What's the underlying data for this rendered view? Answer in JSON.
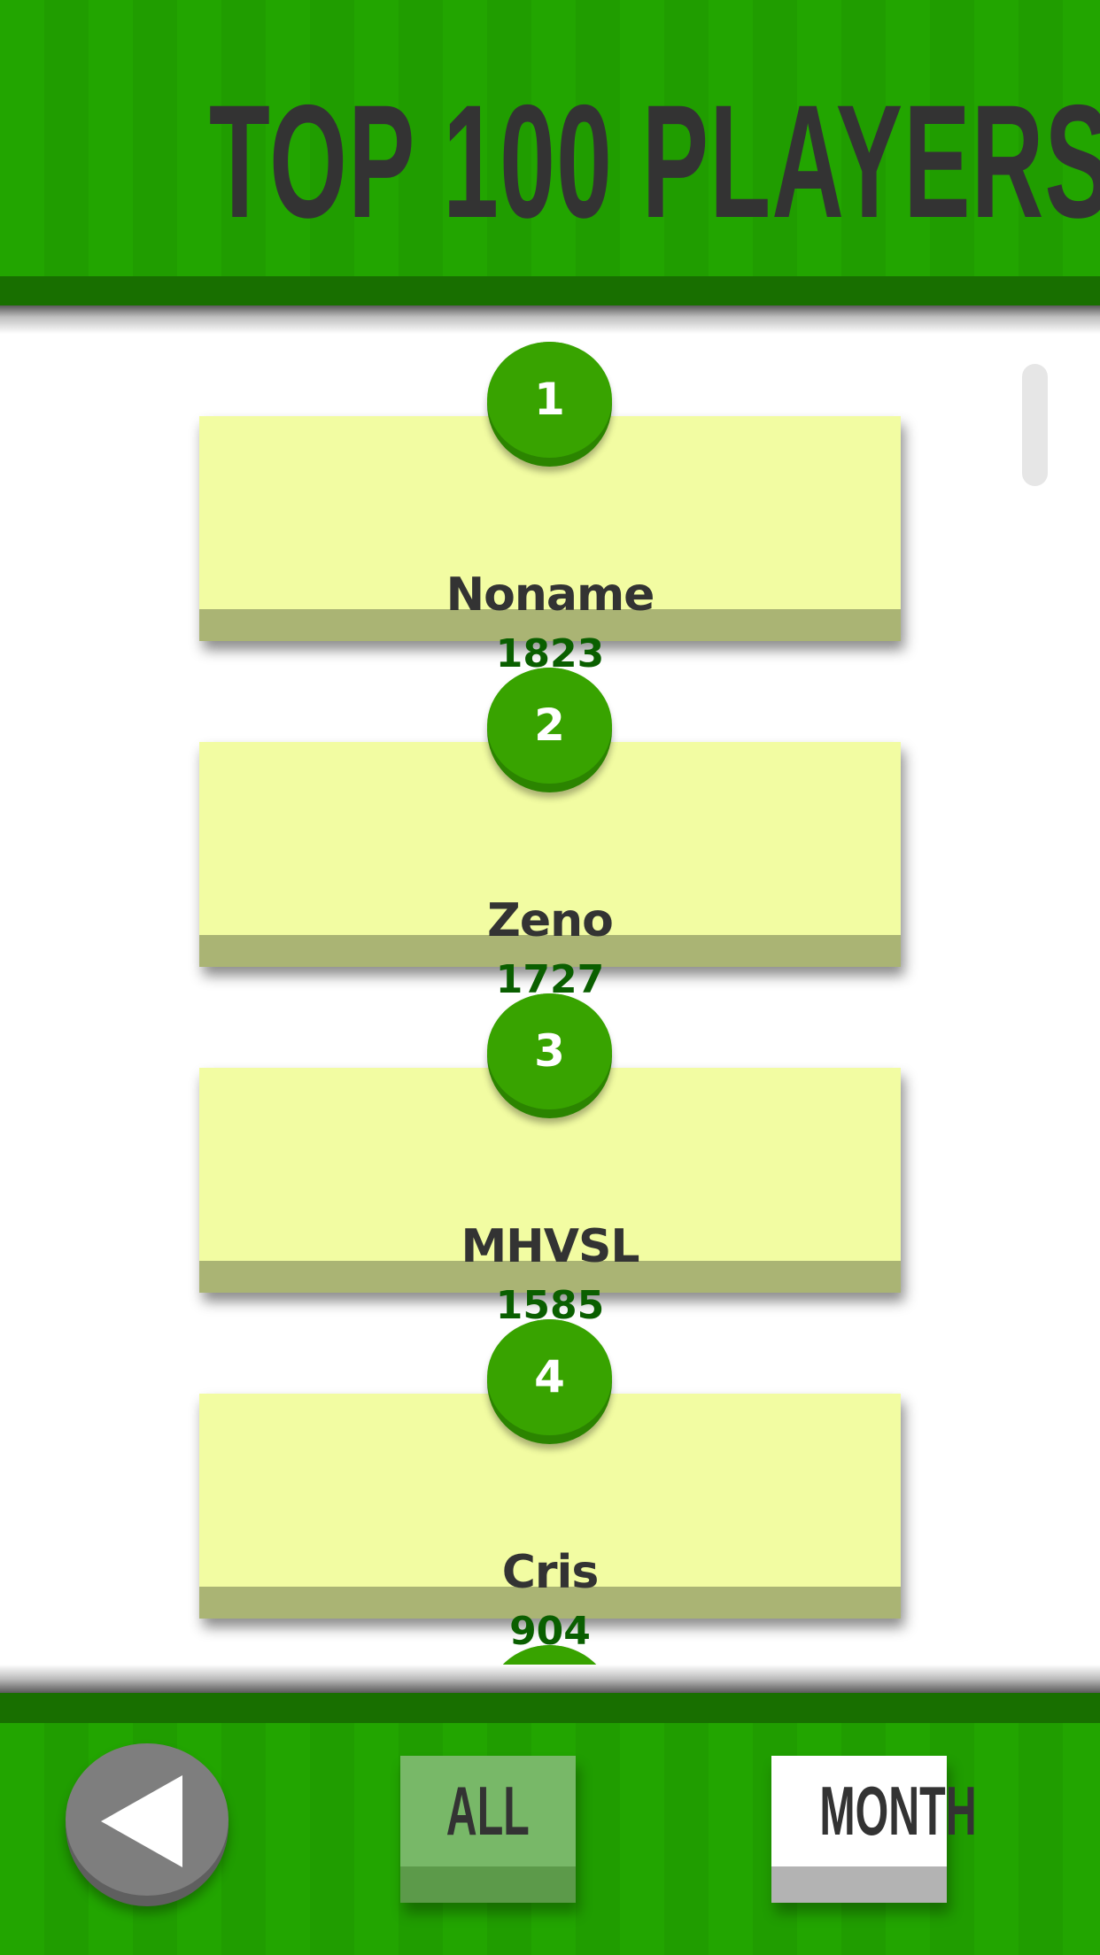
{
  "header": {
    "title": "TOP 100 PLAYERS"
  },
  "players": [
    {
      "rank": "1",
      "name": "Noname",
      "score": "1823"
    },
    {
      "rank": "2",
      "name": "Zeno",
      "score": "1727"
    },
    {
      "rank": "3",
      "name": "MHVSL",
      "score": "1585"
    },
    {
      "rank": "4",
      "name": "Cris",
      "score": "904"
    },
    {
      "rank": "",
      "name": "",
      "score": ""
    }
  ],
  "footer": {
    "back_icon": "triangle-left-icon",
    "tabs": [
      {
        "label": "ALL",
        "selected": false
      },
      {
        "label": "MONTH",
        "selected": true
      }
    ]
  },
  "colors": {
    "green": "#22a500",
    "dark_green": "#186f00",
    "card": "#f2fca2",
    "score": "#0a5f00",
    "rank_badge": "#38a300"
  }
}
